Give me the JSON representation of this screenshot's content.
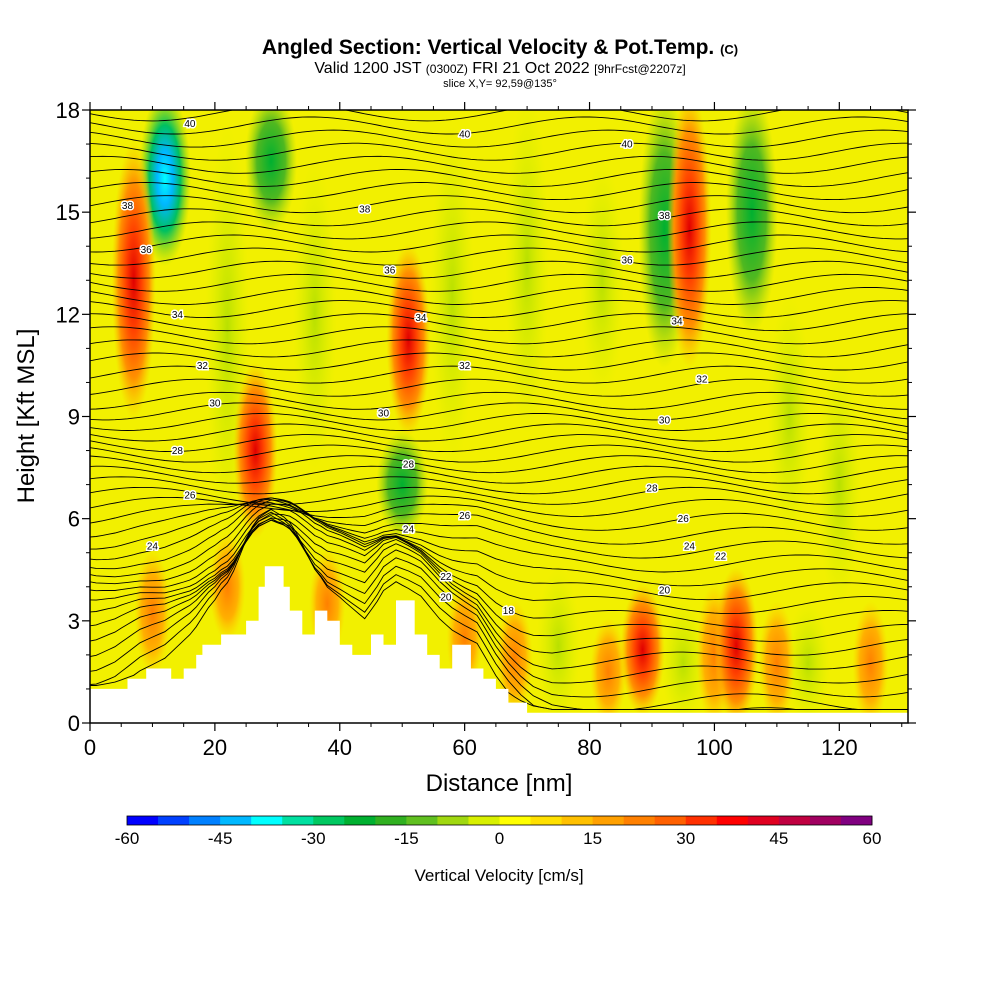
{
  "title": {
    "main": "Angled Section: Vertical Velocity & Pot.Temp.",
    "copyright": "(C)",
    "valid_prefix": "Valid 1200 JST",
    "valid_zulu": "(0300Z)",
    "valid_date": "FRI 21 Oct 2022",
    "forecast": "[9hrFcst@2207z]",
    "slice": "slice X,Y= 92,59@135°"
  },
  "chart_data": {
    "type": "heatmap",
    "xlabel": "Distance [nm]",
    "ylabel": "Height [Kft MSL]",
    "xlim": [
      0,
      131
    ],
    "ylim": [
      0,
      18
    ],
    "x_ticks": [
      0,
      20,
      40,
      60,
      80,
      100,
      120
    ],
    "y_ticks": [
      0,
      3,
      6,
      9,
      12,
      15,
      18
    ],
    "colorbar": {
      "label": "Vertical Velocity [cm/s]",
      "range": [
        -60,
        60
      ],
      "tick_labels": [
        "-60",
        "-45",
        "-30",
        "-15",
        "0",
        "15",
        "30",
        "45",
        "60"
      ],
      "colors": [
        "#0000ff",
        "#0040ff",
        "#0080ff",
        "#00b8ff",
        "#00ffff",
        "#00e0a0",
        "#00c860",
        "#00b030",
        "#30b020",
        "#60c020",
        "#a0d810",
        "#d8f000",
        "#ffff00",
        "#ffe000",
        "#ffc000",
        "#ffa000",
        "#ff8000",
        "#ff6000",
        "#ff3000",
        "#ff0000",
        "#e00020",
        "#c00040",
        "#a00060",
        "#800080"
      ]
    },
    "terrain_kft": [
      [
        0,
        1.0
      ],
      [
        6,
        1.0
      ],
      [
        6,
        1.3
      ],
      [
        9,
        1.3
      ],
      [
        9,
        1.6
      ],
      [
        13,
        1.6
      ],
      [
        13,
        1.3
      ],
      [
        15,
        1.3
      ],
      [
        15,
        1.6
      ],
      [
        17,
        1.6
      ],
      [
        17,
        2.0
      ],
      [
        18,
        2.0
      ],
      [
        18,
        2.3
      ],
      [
        21,
        2.3
      ],
      [
        21,
        2.6
      ],
      [
        25,
        2.6
      ],
      [
        25,
        3.0
      ],
      [
        27,
        3.0
      ],
      [
        27,
        4.0
      ],
      [
        28,
        4.0
      ],
      [
        28,
        4.6
      ],
      [
        31,
        4.6
      ],
      [
        31,
        4.0
      ],
      [
        32,
        4.0
      ],
      [
        32,
        3.3
      ],
      [
        34,
        3.3
      ],
      [
        34,
        2.6
      ],
      [
        36,
        2.6
      ],
      [
        36,
        3.3
      ],
      [
        38,
        3.3
      ],
      [
        38,
        3.0
      ],
      [
        40,
        3.0
      ],
      [
        40,
        2.3
      ],
      [
        42,
        2.3
      ],
      [
        42,
        2.0
      ],
      [
        45,
        2.0
      ],
      [
        45,
        2.6
      ],
      [
        47,
        2.6
      ],
      [
        47,
        2.3
      ],
      [
        49,
        2.3
      ],
      [
        49,
        3.6
      ],
      [
        52,
        3.6
      ],
      [
        52,
        2.6
      ],
      [
        54,
        2.6
      ],
      [
        54,
        2.0
      ],
      [
        56,
        2.0
      ],
      [
        56,
        1.6
      ],
      [
        58,
        1.6
      ],
      [
        58,
        2.3
      ],
      [
        61,
        2.3
      ],
      [
        61,
        1.6
      ],
      [
        63,
        1.6
      ],
      [
        63,
        1.3
      ],
      [
        65,
        1.3
      ],
      [
        65,
        1.0
      ],
      [
        67,
        1.0
      ],
      [
        67,
        0.6
      ],
      [
        70,
        0.6
      ],
      [
        70,
        0.3
      ],
      [
        131,
        0.3
      ]
    ],
    "updrafts": [
      {
        "x": 7,
        "y_range": [
          9.5,
          16.5
        ],
        "max_cm_s": 45
      },
      {
        "x": 26.5,
        "y_range": [
          6,
          10
        ],
        "max_cm_s": 45
      },
      {
        "x": 51,
        "y_range": [
          9,
          13.5
        ],
        "max_cm_s": 45
      },
      {
        "x": 96,
        "y_range": [
          11,
          18
        ],
        "max_cm_s": 45
      },
      {
        "x": 103.5,
        "y_range": [
          0.5,
          4
        ],
        "max_cm_s": 45
      },
      {
        "x": 88.5,
        "y_range": [
          0.8,
          3.5
        ],
        "max_cm_s": 35
      }
    ],
    "downdrafts": [
      {
        "x": 12,
        "y_range": [
          14,
          18
        ],
        "min_cm_s": -40
      },
      {
        "x": 29,
        "y_range": [
          15,
          18
        ],
        "min_cm_s": -20
      },
      {
        "x": 50,
        "y_range": [
          6,
          8
        ],
        "min_cm_s": -20
      },
      {
        "x": 92,
        "y_range": [
          11,
          18
        ],
        "min_cm_s": -20
      },
      {
        "x": 106,
        "y_range": [
          12,
          18
        ],
        "min_cm_s": -20
      }
    ],
    "isentropes": [
      {
        "theta": 18,
        "labels": [
          [
            67,
            3.3
          ]
        ]
      },
      {
        "theta": 20,
        "labels": [
          [
            57,
            3.7
          ],
          [
            92,
            3.9
          ]
        ]
      },
      {
        "theta": 22,
        "labels": [
          [
            57,
            4.3
          ],
          [
            101,
            4.9
          ]
        ]
      },
      {
        "theta": 24,
        "labels": [
          [
            10,
            5.2
          ],
          [
            51,
            5.7
          ],
          [
            96,
            5.2
          ]
        ]
      },
      {
        "theta": 26,
        "labels": [
          [
            16,
            6.7
          ],
          [
            60,
            6.1
          ],
          [
            95,
            6.0
          ]
        ]
      },
      {
        "theta": 28,
        "labels": [
          [
            14,
            8.0
          ],
          [
            51,
            7.6
          ],
          [
            90,
            6.9
          ]
        ]
      },
      {
        "theta": 30,
        "labels": [
          [
            20,
            9.4
          ],
          [
            47,
            9.1
          ],
          [
            92,
            8.9
          ]
        ]
      },
      {
        "theta": 32,
        "labels": [
          [
            18,
            10.5
          ],
          [
            60,
            10.5
          ],
          [
            98,
            10.1
          ]
        ]
      },
      {
        "theta": 34,
        "labels": [
          [
            14,
            12.0
          ],
          [
            53,
            11.9
          ],
          [
            94,
            11.8
          ]
        ]
      },
      {
        "theta": 36,
        "labels": [
          [
            9,
            13.9
          ],
          [
            48,
            13.3
          ],
          [
            86,
            13.6
          ]
        ]
      },
      {
        "theta": 38,
        "labels": [
          [
            6,
            15.2
          ],
          [
            44,
            15.1
          ],
          [
            92,
            14.9
          ]
        ]
      },
      {
        "theta": 40,
        "labels": [
          [
            16,
            17.6
          ],
          [
            60,
            17.3
          ],
          [
            86,
            17.0
          ]
        ]
      }
    ]
  }
}
